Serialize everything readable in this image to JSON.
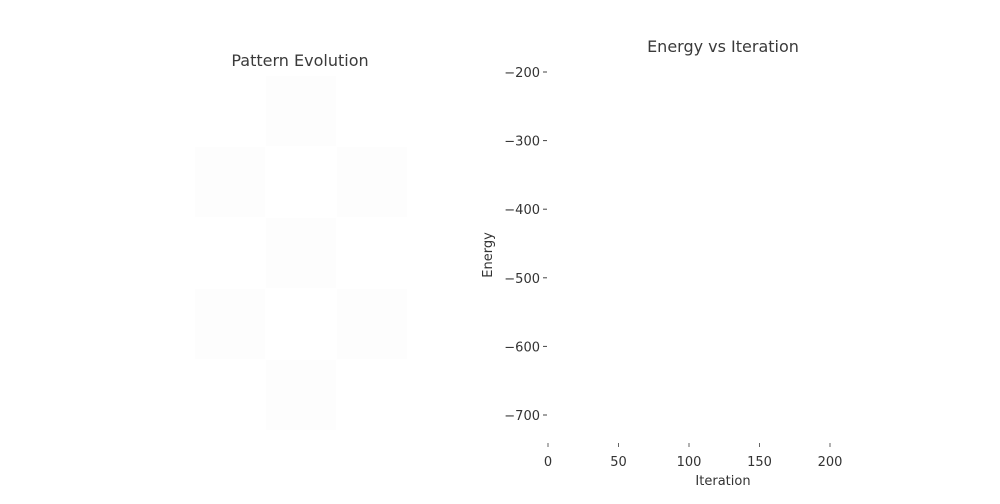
{
  "left": {
    "title": "Pattern Evolution",
    "pattern": [
      [
        0,
        1,
        0
      ],
      [
        1,
        0,
        1
      ],
      [
        0,
        1,
        0
      ],
      [
        1,
        0,
        1
      ],
      [
        0,
        1,
        0
      ]
    ],
    "colors": {
      "on": "#fdfdfd",
      "off": "#ffffff"
    }
  },
  "chart_data": {
    "type": "line",
    "title": "Energy vs Iteration",
    "xlabel": "Iteration",
    "ylabel": "Energy",
    "xlim": [
      0,
      240
    ],
    "ylim": [
      -750,
      -190
    ],
    "xticks": [
      0,
      50,
      100,
      150,
      200
    ],
    "yticks": [
      -200,
      -300,
      -400,
      -500,
      -600,
      -700
    ],
    "xtick_labels": [
      "0",
      "50",
      "100",
      "150",
      "200"
    ],
    "ytick_labels": [
      "−200",
      "−300",
      "−400",
      "−500",
      "−600",
      "−700"
    ],
    "grid": false,
    "series": []
  }
}
